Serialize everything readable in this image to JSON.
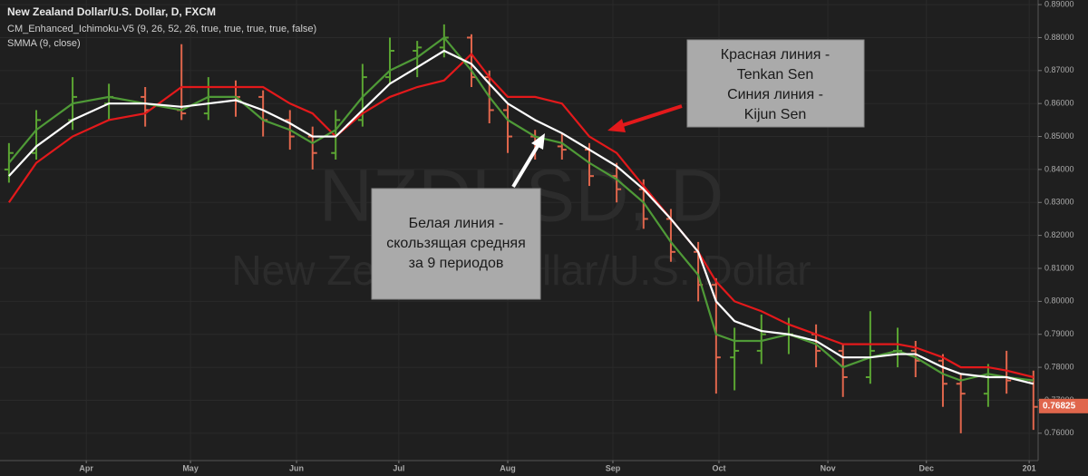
{
  "header": [
    "New Zealand Dollar/U.S. Dollar, D, FXCM",
    "CM_Enhanced_Ichimoku-V5 (9, 26, 52, 26, true, true, true, true, false)",
    "SMMA (9, close)"
  ],
  "watermark": [
    "NZDUSD, D",
    "New Zealand Dollar/U.S. Dollar"
  ],
  "annotations": [
    [
      "Красная линия -",
      "Tenkan Sen",
      "Синия линия -",
      "Kijun Sen"
    ],
    [
      "Белая линия -",
      "скользящая средняя",
      "за 9 периодов"
    ]
  ],
  "chart_data": {
    "type": "ohlc",
    "x": [
      1.9,
      7.7,
      15.4,
      23.1,
      30.8,
      38.5,
      44.2,
      50,
      55.8,
      61.5,
      66.3,
      71.2,
      76.9,
      82.7,
      88.5,
      94.2,
      100,
      103.8,
      107.7,
      113.5,
      119.2,
      125,
      130.8,
      136.5,
      142.3,
      148.1,
      151.9,
      155.8,
      161.5,
      167.3,
      173.1,
      178.8,
      184.6,
      190.4,
      194.2,
      200,
      203.8,
      209.6,
      213.5,
      219.2
    ],
    "open": [
      0.84,
      0.845,
      0.855,
      0.86,
      0.862,
      0.858,
      0.857,
      0.865,
      0.862,
      0.855,
      0.85,
      0.845,
      0.855,
      0.868,
      0.876,
      0.877,
      0.88,
      0.868,
      0.858,
      0.85,
      0.847,
      0.846,
      0.838,
      0.834,
      0.825,
      0.815,
      0.805,
      0.783,
      0.785,
      0.79,
      0.79,
      0.785,
      0.777,
      0.785,
      0.785,
      0.782,
      0.775,
      0.772,
      0.777,
      0.776
    ],
    "high": [
      0.848,
      0.858,
      0.868,
      0.866,
      0.865,
      0.878,
      0.868,
      0.867,
      0.864,
      0.858,
      0.853,
      0.858,
      0.872,
      0.88,
      0.879,
      0.884,
      0.881,
      0.87,
      0.86,
      0.852,
      0.851,
      0.848,
      0.842,
      0.837,
      0.828,
      0.818,
      0.807,
      0.792,
      0.796,
      0.795,
      0.793,
      0.787,
      0.797,
      0.792,
      0.788,
      0.784,
      0.778,
      0.781,
      0.785,
      0.779
    ],
    "low": [
      0.836,
      0.843,
      0.852,
      0.855,
      0.853,
      0.855,
      0.855,
      0.856,
      0.85,
      0.846,
      0.84,
      0.843,
      0.853,
      0.866,
      0.868,
      0.874,
      0.865,
      0.854,
      0.845,
      0.843,
      0.843,
      0.835,
      0.83,
      0.822,
      0.812,
      0.8,
      0.772,
      0.773,
      0.781,
      0.784,
      0.78,
      0.771,
      0.775,
      0.78,
      0.777,
      0.768,
      0.76,
      0.768,
      0.772,
      0.761
    ],
    "close": [
      0.845,
      0.855,
      0.862,
      0.862,
      0.858,
      0.857,
      0.865,
      0.862,
      0.855,
      0.85,
      0.845,
      0.855,
      0.868,
      0.876,
      0.877,
      0.88,
      0.868,
      0.858,
      0.85,
      0.847,
      0.846,
      0.838,
      0.834,
      0.825,
      0.815,
      0.805,
      0.783,
      0.785,
      0.79,
      0.79,
      0.785,
      0.777,
      0.785,
      0.785,
      0.782,
      0.775,
      0.772,
      0.777,
      0.776,
      0.768
    ],
    "up_color": "#5ba532",
    "down_color": "#e0664c",
    "series": [
      {
        "color": "#e3191b",
        "values": [
          0.83,
          0.842,
          0.85,
          0.855,
          0.857,
          0.865,
          0.865,
          0.865,
          0.865,
          0.86,
          0.857,
          0.85,
          0.857,
          0.862,
          0.865,
          0.867,
          0.875,
          0.868,
          0.862,
          0.862,
          0.86,
          0.85,
          0.845,
          0.835,
          0.825,
          0.815,
          0.806,
          0.8,
          0.797,
          0.793,
          0.79,
          0.787,
          0.787,
          0.787,
          0.786,
          0.783,
          0.78,
          0.78,
          0.779,
          0.777
        ]
      },
      {
        "color": "#4f9a37",
        "values": [
          0.842,
          0.852,
          0.86,
          0.862,
          0.86,
          0.858,
          0.862,
          0.862,
          0.855,
          0.852,
          0.848,
          0.852,
          0.862,
          0.87,
          0.874,
          0.88,
          0.87,
          0.862,
          0.855,
          0.85,
          0.848,
          0.842,
          0.837,
          0.83,
          0.818,
          0.808,
          0.79,
          0.788,
          0.788,
          0.79,
          0.787,
          0.78,
          0.783,
          0.785,
          0.783,
          0.778,
          0.776,
          0.778,
          0.777,
          0.776
        ]
      },
      {
        "color": "#ffffff",
        "values": [
          0.838,
          0.847,
          0.855,
          0.86,
          0.86,
          0.859,
          0.86,
          0.861,
          0.858,
          0.854,
          0.85,
          0.85,
          0.858,
          0.866,
          0.871,
          0.876,
          0.872,
          0.866,
          0.86,
          0.855,
          0.851,
          0.846,
          0.841,
          0.834,
          0.825,
          0.815,
          0.8,
          0.794,
          0.791,
          0.79,
          0.788,
          0.783,
          0.783,
          0.784,
          0.784,
          0.78,
          0.778,
          0.777,
          0.777,
          0.775
        ]
      }
    ],
    "last_price": 0.76825,
    "xlim": [
      0,
      220.2
    ],
    "xticks": [
      {
        "value": 18.3,
        "label": "Apr"
      },
      {
        "value": 40.4,
        "label": "May"
      },
      {
        "value": 62.9,
        "label": "Jun"
      },
      {
        "value": 84.6,
        "label": "Jul"
      },
      {
        "value": 107.7,
        "label": "Aug"
      },
      {
        "value": 130,
        "label": "Sep"
      },
      {
        "value": 152.5,
        "label": "Oct"
      },
      {
        "value": 175.6,
        "label": "Nov"
      },
      {
        "value": 196.5,
        "label": "Dec"
      },
      {
        "value": 218.3,
        "label": "201"
      }
    ],
    "ylim": [
      0.7517,
      0.8914
    ],
    "yticks": [
      {
        "value": 0.76,
        "label": "0.76000"
      },
      {
        "value": 0.77,
        "label": "0.77000"
      },
      {
        "value": 0.78,
        "label": "0.78000"
      },
      {
        "value": 0.79,
        "label": "0.79000"
      },
      {
        "value": 0.8,
        "label": "0.80000"
      },
      {
        "value": 0.81,
        "label": "0.81000"
      },
      {
        "value": 0.82,
        "label": "0.82000"
      },
      {
        "value": 0.83,
        "label": "0.83000"
      },
      {
        "value": 0.84,
        "label": "0.84000"
      },
      {
        "value": 0.85,
        "label": "0.85000"
      },
      {
        "value": 0.86,
        "label": "0.86000"
      },
      {
        "value": 0.87,
        "label": "0.87000"
      },
      {
        "value": 0.88,
        "label": "0.88000"
      },
      {
        "value": 0.89,
        "label": "0.89000"
      }
    ],
    "grid": true
  }
}
